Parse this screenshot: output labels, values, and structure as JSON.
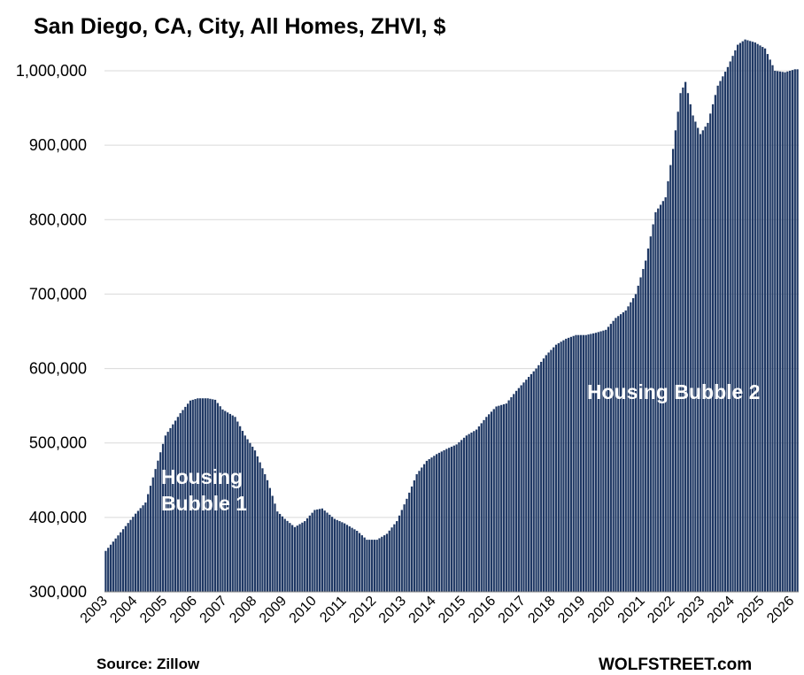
{
  "chart_data": {
    "type": "bar",
    "title": "San Diego, CA, City, All Homes, ZHVI, $",
    "ylim": [
      300000,
      1040000
    ],
    "yticks": [
      "300,000",
      "400,000",
      "500,000",
      "600,000",
      "700,000",
      "800,000",
      "900,000",
      "1,000,000"
    ],
    "xticks": [
      "2003",
      "2004",
      "2005",
      "2006",
      "2007",
      "2008",
      "2009",
      "2010",
      "2011",
      "2012",
      "2013",
      "2014",
      "2015",
      "2016",
      "2017",
      "2018",
      "2019",
      "2020",
      "2021",
      "2022",
      "2023",
      "2024",
      "2025",
      "2026"
    ],
    "grid": true,
    "bar_color": "#1f3864",
    "series": [
      {
        "x_start": "2003-01",
        "frequency": "monthly",
        "knots": [
          [
            "2003-01",
            355000
          ],
          [
            "2003-07",
            380000
          ],
          [
            "2004-01",
            405000
          ],
          [
            "2004-05",
            420000
          ],
          [
            "2004-09",
            465000
          ],
          [
            "2005-01",
            510000
          ],
          [
            "2005-07",
            540000
          ],
          [
            "2005-11",
            557000
          ],
          [
            "2006-02",
            560000
          ],
          [
            "2006-06",
            560000
          ],
          [
            "2006-09",
            558000
          ],
          [
            "2006-12",
            545000
          ],
          [
            "2007-05",
            535000
          ],
          [
            "2007-09",
            510000
          ],
          [
            "2008-01",
            490000
          ],
          [
            "2008-06",
            450000
          ],
          [
            "2008-10",
            408000
          ],
          [
            "2009-01",
            398000
          ],
          [
            "2009-05",
            387000
          ],
          [
            "2009-09",
            395000
          ],
          [
            "2010-01",
            410000
          ],
          [
            "2010-04",
            412000
          ],
          [
            "2010-09",
            398000
          ],
          [
            "2011-01",
            392000
          ],
          [
            "2011-06",
            382000
          ],
          [
            "2011-10",
            370000
          ],
          [
            "2012-02",
            370000
          ],
          [
            "2012-06",
            378000
          ],
          [
            "2012-10",
            395000
          ],
          [
            "2013-02",
            425000
          ],
          [
            "2013-06",
            458000
          ],
          [
            "2013-10",
            476000
          ],
          [
            "2014-02",
            485000
          ],
          [
            "2014-06",
            492000
          ],
          [
            "2014-10",
            498000
          ],
          [
            "2015-02",
            510000
          ],
          [
            "2015-06",
            518000
          ],
          [
            "2015-10",
            535000
          ],
          [
            "2016-02",
            549000
          ],
          [
            "2016-06",
            553000
          ],
          [
            "2016-10",
            570000
          ],
          [
            "2017-02",
            585000
          ],
          [
            "2017-06",
            600000
          ],
          [
            "2017-10",
            618000
          ],
          [
            "2018-02",
            632000
          ],
          [
            "2018-06",
            640000
          ],
          [
            "2018-10",
            645000
          ],
          [
            "2019-02",
            645000
          ],
          [
            "2019-06",
            648000
          ],
          [
            "2019-10",
            652000
          ],
          [
            "2020-02",
            668000
          ],
          [
            "2020-06",
            678000
          ],
          [
            "2020-10",
            700000
          ],
          [
            "2021-02",
            745000
          ],
          [
            "2021-06",
            810000
          ],
          [
            "2021-10",
            830000
          ],
          [
            "2022-01",
            895000
          ],
          [
            "2022-04",
            970000
          ],
          [
            "2022-06",
            985000
          ],
          [
            "2022-09",
            940000
          ],
          [
            "2022-12",
            915000
          ],
          [
            "2023-03",
            930000
          ],
          [
            "2023-07",
            980000
          ],
          [
            "2023-11",
            1005000
          ],
          [
            "2024-03",
            1035000
          ],
          [
            "2024-06",
            1042000
          ],
          [
            "2024-10",
            1038000
          ],
          [
            "2025-02",
            1030000
          ],
          [
            "2025-06",
            1000000
          ],
          [
            "2025-10",
            998000
          ],
          [
            "2026-02",
            1002000
          ],
          [
            "2026-03",
            1002000
          ]
        ]
      }
    ],
    "annotations": [
      "Housing",
      "Bubble 1",
      "Housing Bubble 2"
    ]
  },
  "footer": {
    "source": "Source: Zillow",
    "brand": "WOLFSTREET.com"
  }
}
